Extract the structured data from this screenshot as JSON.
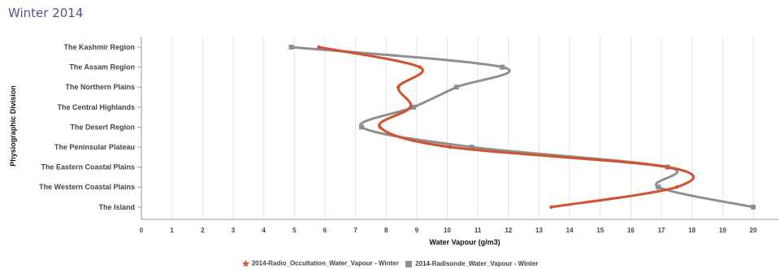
{
  "chart_data": {
    "type": "line",
    "title": "Winter 2014",
    "xlabel": "Water Vapour (g/m3)",
    "ylabel": "Physiographic Division",
    "xlim": [
      0,
      20
    ],
    "x_ticks": [
      "0",
      "1",
      "2",
      "3",
      "4",
      "5",
      "6",
      "7",
      "8",
      "9",
      "10",
      "11",
      "12",
      "13",
      "14",
      "15",
      "16",
      "17",
      "18",
      "19",
      "20",
      "2"
    ],
    "categories": [
      "The Kashmir Region",
      "The Assam Region",
      "The Northern Plains",
      "The Central Highlands",
      "The Desert Region",
      "The Peninsular Plateau",
      "The Eastern Coastal Plains",
      "The Western Coastal Plains",
      "The Island"
    ],
    "series": [
      {
        "name": "2014-Radio_Occultation_Water_Vapour - Winter",
        "color": "#d2522e",
        "marker": "star",
        "values": [
          5.8,
          9.1,
          8.4,
          8.8,
          7.8,
          10.1,
          17.2,
          17.5,
          13.4
        ]
      },
      {
        "name": "2014-Radisonde_Water_Vapour - Winter",
        "color": "#8f8f8f",
        "marker": "square",
        "values": [
          4.9,
          11.8,
          10.3,
          8.9,
          7.2,
          10.8,
          17.2,
          16.9,
          20.0
        ]
      }
    ],
    "grid": true,
    "legend_position": "bottom"
  }
}
